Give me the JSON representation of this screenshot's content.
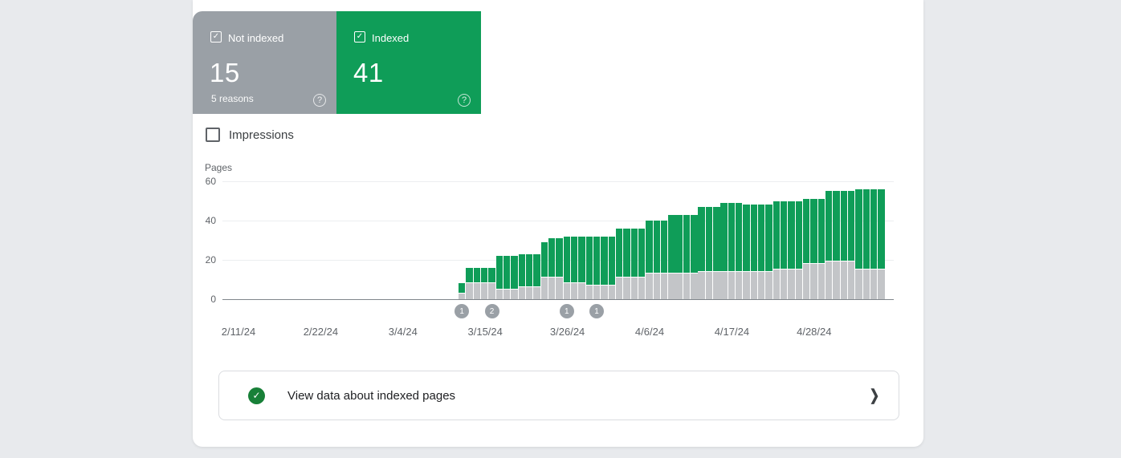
{
  "colors": {
    "page_bg": "#e8eaed",
    "panel_bg": "#ffffff",
    "not_indexed_card": "#9aa0a6",
    "indexed_card": "#0f9d58",
    "bar_indexed": "#0f9d58",
    "bar_not_indexed": "#c3c5c8",
    "annotation_circle": "#9aa0a6",
    "check_circle": "#188038",
    "axis_text": "#5f6368"
  },
  "cards": {
    "not_indexed": {
      "label": "Not indexed",
      "value": "15",
      "sub": "5 reasons",
      "checked": true,
      "check_glyph": "✓",
      "help_glyph": "?"
    },
    "indexed": {
      "label": "Indexed",
      "value": "41",
      "checked": true,
      "check_glyph": "✓",
      "help_glyph": "?"
    }
  },
  "impressions": {
    "label": "Impressions",
    "checked": false
  },
  "chart_data": {
    "type": "bar",
    "stacked": true,
    "ylabel": "Pages",
    "ylim": [
      0,
      60
    ],
    "y_ticks": [
      60,
      40,
      20,
      0
    ],
    "x_ticks": [
      "2/11/24",
      "2/22/24",
      "3/4/24",
      "3/15/24",
      "3/26/24",
      "4/6/24",
      "4/17/24",
      "4/28/24"
    ],
    "legend": [
      "Not indexed",
      "Indexed"
    ],
    "grid": true,
    "bars": [
      {
        "date": "3/12/24",
        "not_indexed": 3,
        "indexed": 5
      },
      {
        "date": "3/13/24",
        "not_indexed": 8,
        "indexed": 8
      },
      {
        "date": "3/14/24",
        "not_indexed": 8,
        "indexed": 8
      },
      {
        "date": "3/15/24",
        "not_indexed": 8,
        "indexed": 8
      },
      {
        "date": "3/16/24",
        "not_indexed": 8,
        "indexed": 8
      },
      {
        "date": "3/17/24",
        "not_indexed": 5,
        "indexed": 17
      },
      {
        "date": "3/18/24",
        "not_indexed": 5,
        "indexed": 17
      },
      {
        "date": "3/19/24",
        "not_indexed": 5,
        "indexed": 17
      },
      {
        "date": "3/20/24",
        "not_indexed": 6,
        "indexed": 17
      },
      {
        "date": "3/21/24",
        "not_indexed": 6,
        "indexed": 17
      },
      {
        "date": "3/22/24",
        "not_indexed": 6,
        "indexed": 17
      },
      {
        "date": "3/23/24",
        "not_indexed": 11,
        "indexed": 18
      },
      {
        "date": "3/24/24",
        "not_indexed": 11,
        "indexed": 20
      },
      {
        "date": "3/25/24",
        "not_indexed": 11,
        "indexed": 20
      },
      {
        "date": "3/26/24",
        "not_indexed": 8,
        "indexed": 24
      },
      {
        "date": "3/27/24",
        "not_indexed": 8,
        "indexed": 24
      },
      {
        "date": "3/28/24",
        "not_indexed": 8,
        "indexed": 24
      },
      {
        "date": "3/29/24",
        "not_indexed": 7,
        "indexed": 25
      },
      {
        "date": "3/30/24",
        "not_indexed": 7,
        "indexed": 25
      },
      {
        "date": "3/31/24",
        "not_indexed": 7,
        "indexed": 25
      },
      {
        "date": "4/1/24",
        "not_indexed": 7,
        "indexed": 25
      },
      {
        "date": "4/2/24",
        "not_indexed": 11,
        "indexed": 25
      },
      {
        "date": "4/3/24",
        "not_indexed": 11,
        "indexed": 25
      },
      {
        "date": "4/4/24",
        "not_indexed": 11,
        "indexed": 25
      },
      {
        "date": "4/5/24",
        "not_indexed": 11,
        "indexed": 25
      },
      {
        "date": "4/6/24",
        "not_indexed": 13,
        "indexed": 27
      },
      {
        "date": "4/7/24",
        "not_indexed": 13,
        "indexed": 27
      },
      {
        "date": "4/8/24",
        "not_indexed": 13,
        "indexed": 27
      },
      {
        "date": "4/9/24",
        "not_indexed": 13,
        "indexed": 30
      },
      {
        "date": "4/10/24",
        "not_indexed": 13,
        "indexed": 30
      },
      {
        "date": "4/11/24",
        "not_indexed": 13,
        "indexed": 30
      },
      {
        "date": "4/12/24",
        "not_indexed": 13,
        "indexed": 30
      },
      {
        "date": "4/13/24",
        "not_indexed": 14,
        "indexed": 33
      },
      {
        "date": "4/14/24",
        "not_indexed": 14,
        "indexed": 33
      },
      {
        "date": "4/15/24",
        "not_indexed": 14,
        "indexed": 33
      },
      {
        "date": "4/16/24",
        "not_indexed": 14,
        "indexed": 35
      },
      {
        "date": "4/17/24",
        "not_indexed": 14,
        "indexed": 35
      },
      {
        "date": "4/18/24",
        "not_indexed": 14,
        "indexed": 35
      },
      {
        "date": "4/19/24",
        "not_indexed": 14,
        "indexed": 34
      },
      {
        "date": "4/20/24",
        "not_indexed": 14,
        "indexed": 34
      },
      {
        "date": "4/21/24",
        "not_indexed": 14,
        "indexed": 34
      },
      {
        "date": "4/22/24",
        "not_indexed": 14,
        "indexed": 34
      },
      {
        "date": "4/23/24",
        "not_indexed": 15,
        "indexed": 35
      },
      {
        "date": "4/24/24",
        "not_indexed": 15,
        "indexed": 35
      },
      {
        "date": "4/25/24",
        "not_indexed": 15,
        "indexed": 35
      },
      {
        "date": "4/26/24",
        "not_indexed": 15,
        "indexed": 35
      },
      {
        "date": "4/27/24",
        "not_indexed": 18,
        "indexed": 33
      },
      {
        "date": "4/28/24",
        "not_indexed": 18,
        "indexed": 33
      },
      {
        "date": "4/29/24",
        "not_indexed": 18,
        "indexed": 33
      },
      {
        "date": "4/30/24",
        "not_indexed": 19,
        "indexed": 36
      },
      {
        "date": "5/1/24",
        "not_indexed": 19,
        "indexed": 36
      },
      {
        "date": "5/2/24",
        "not_indexed": 19,
        "indexed": 36
      },
      {
        "date": "5/3/24",
        "not_indexed": 19,
        "indexed": 36
      },
      {
        "date": "5/4/24",
        "not_indexed": 15,
        "indexed": 41
      },
      {
        "date": "5/5/24",
        "not_indexed": 15,
        "indexed": 41
      },
      {
        "date": "5/6/24",
        "not_indexed": 15,
        "indexed": 41
      },
      {
        "date": "5/7/24",
        "not_indexed": 15,
        "indexed": 41
      }
    ],
    "annotations": [
      {
        "day_index": 0,
        "count": "1"
      },
      {
        "day_index": 4,
        "count": "2"
      },
      {
        "day_index": 14,
        "count": "1"
      },
      {
        "day_index": 18,
        "count": "1"
      }
    ]
  },
  "footer": {
    "button_label": "View data about indexed pages",
    "check_glyph": "✓",
    "chevron_glyph": "❯"
  }
}
